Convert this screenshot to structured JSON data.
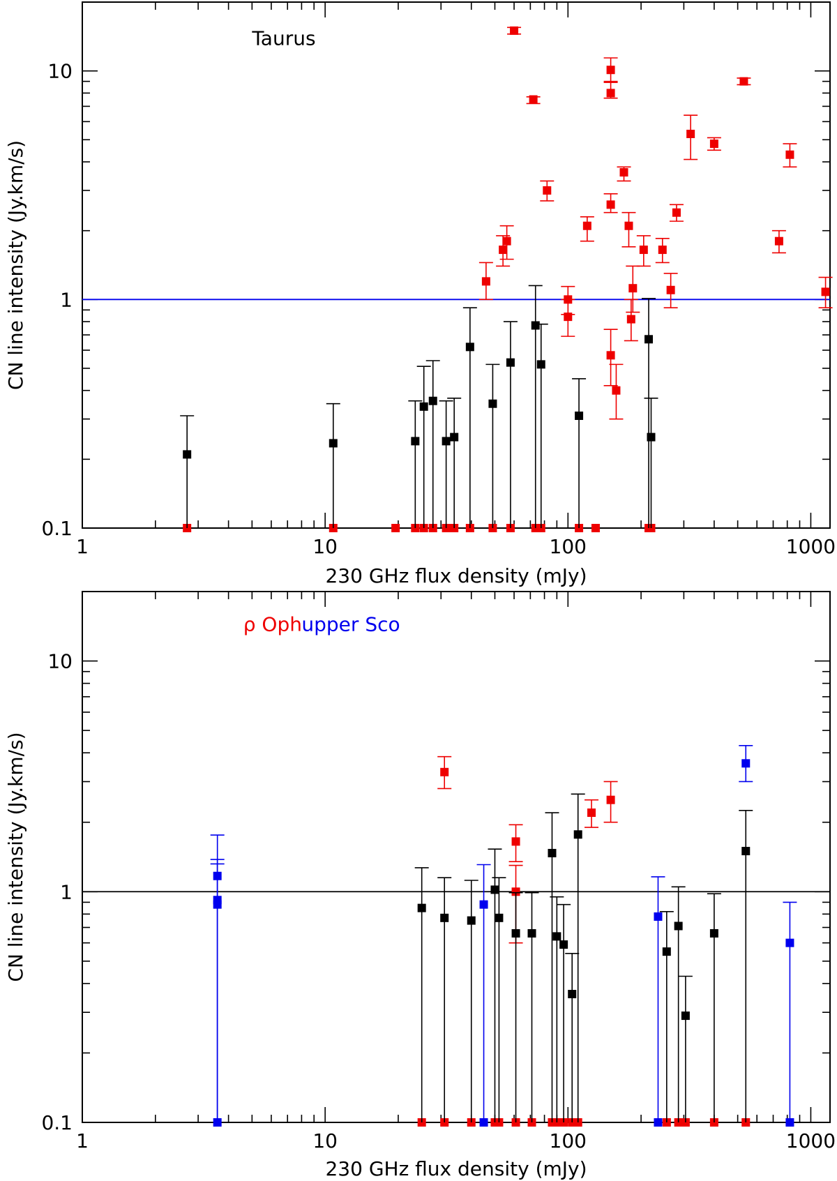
{
  "chart_data": [
    {
      "type": "scatter",
      "xscale": "log",
      "yscale": "log",
      "xlim": [
        1,
        1200
      ],
      "ylim": [
        0.1,
        20
      ],
      "xlabel": "230 GHz flux density (mJy)",
      "ylabel": "CN line intensity (Jy.km/s)",
      "xticks": [
        {
          "value": 1,
          "label": "1"
        },
        {
          "value": 10,
          "label": "10"
        },
        {
          "value": 100,
          "label": "100"
        },
        {
          "value": 1000,
          "label": "1000"
        }
      ],
      "yticks": [
        {
          "value": 0.1,
          "label": "0.1"
        },
        {
          "value": 1,
          "label": "1"
        },
        {
          "value": 10,
          "label": "10"
        }
      ],
      "reference_line": {
        "y": 1,
        "color": "#0000ee"
      },
      "annotations": [
        {
          "text": "Taurus",
          "color": "#000000",
          "x": 5,
          "y": 13
        }
      ],
      "series": [
        {
          "color": "#ee0000",
          "points": [
            {
              "x": 60,
              "y": 15.0,
              "lo": 14.5,
              "hi": 15.5
            },
            {
              "x": 72,
              "y": 7.5,
              "lo": 7.2,
              "hi": 7.7
            },
            {
              "x": 150,
              "y": 10.1,
              "lo": 8.9,
              "hi": 11.4
            },
            {
              "x": 150,
              "y": 8.0,
              "lo": 7.6,
              "hi": 9.0
            },
            {
              "x": 530,
              "y": 9.0,
              "lo": 8.7,
              "hi": 9.3
            },
            {
              "x": 320,
              "y": 5.3,
              "lo": 4.1,
              "hi": 6.4
            },
            {
              "x": 400,
              "y": 4.8,
              "lo": 4.5,
              "hi": 5.1
            },
            {
              "x": 820,
              "y": 4.3,
              "lo": 3.8,
              "hi": 4.8
            },
            {
              "x": 82,
              "y": 3.0,
              "lo": 2.7,
              "hi": 3.3
            },
            {
              "x": 170,
              "y": 3.6,
              "lo": 3.3,
              "hi": 3.8
            },
            {
              "x": 150,
              "y": 2.6,
              "lo": 2.4,
              "hi": 2.9
            },
            {
              "x": 280,
              "y": 2.4,
              "lo": 2.2,
              "hi": 2.6
            },
            {
              "x": 120,
              "y": 2.1,
              "lo": 1.8,
              "hi": 2.3
            },
            {
              "x": 178,
              "y": 2.1,
              "lo": 1.7,
              "hi": 2.4
            },
            {
              "x": 56,
              "y": 1.8,
              "lo": 1.5,
              "hi": 2.1
            },
            {
              "x": 54,
              "y": 1.65,
              "lo": 1.4,
              "hi": 1.9
            },
            {
              "x": 205,
              "y": 1.65,
              "lo": 1.4,
              "hi": 1.9
            },
            {
              "x": 245,
              "y": 1.65,
              "lo": 1.45,
              "hi": 1.85
            },
            {
              "x": 740,
              "y": 1.8,
              "lo": 1.6,
              "hi": 2.0
            },
            {
              "x": 46,
              "y": 1.2,
              "lo": 1.0,
              "hi": 1.45
            },
            {
              "x": 100,
              "y": 1.0,
              "lo": 0.86,
              "hi": 1.14
            },
            {
              "x": 100,
              "y": 0.84,
              "lo": 0.69,
              "hi": 1.0
            },
            {
              "x": 185,
              "y": 1.12,
              "lo": 0.88,
              "hi": 1.4
            },
            {
              "x": 265,
              "y": 1.1,
              "lo": 0.92,
              "hi": 1.3
            },
            {
              "x": 1150,
              "y": 1.08,
              "lo": 0.92,
              "hi": 1.25
            },
            {
              "x": 182,
              "y": 0.82,
              "lo": 0.66,
              "hi": 1.0
            },
            {
              "x": 150,
              "y": 0.57,
              "lo": 0.42,
              "hi": 0.74
            },
            {
              "x": 158,
              "y": 0.4,
              "lo": 0.3,
              "hi": 0.52
            },
            {
              "x": 2.7,
              "y": 0.1
            },
            {
              "x": 10.8,
              "y": 0.1
            },
            {
              "x": 19.5,
              "y": 0.1
            },
            {
              "x": 23.5,
              "y": 0.1
            },
            {
              "x": 25.5,
              "y": 0.1
            },
            {
              "x": 27.8,
              "y": 0.1
            },
            {
              "x": 31.5,
              "y": 0.1
            },
            {
              "x": 34,
              "y": 0.1
            },
            {
              "x": 39.5,
              "y": 0.1
            },
            {
              "x": 49,
              "y": 0.1
            },
            {
              "x": 58,
              "y": 0.1
            },
            {
              "x": 73.5,
              "y": 0.1
            },
            {
              "x": 77.5,
              "y": 0.1
            },
            {
              "x": 111,
              "y": 0.1
            },
            {
              "x": 130,
              "y": 0.1
            },
            {
              "x": 215,
              "y": 0.1
            },
            {
              "x": 220,
              "y": 0.1
            }
          ]
        },
        {
          "color": "#000000",
          "points": [
            {
              "x": 2.7,
              "y": 0.21,
              "lo": 0.1,
              "hi": 0.31
            },
            {
              "x": 10.8,
              "y": 0.235,
              "lo": 0.1,
              "hi": 0.35
            },
            {
              "x": 23.5,
              "y": 0.24,
              "lo": 0.1,
              "hi": 0.36
            },
            {
              "x": 25.5,
              "y": 0.34,
              "lo": 0.1,
              "hi": 0.51
            },
            {
              "x": 27.8,
              "y": 0.36,
              "lo": 0.1,
              "hi": 0.54
            },
            {
              "x": 31.5,
              "y": 0.24,
              "lo": 0.1,
              "hi": 0.36
            },
            {
              "x": 34,
              "y": 0.25,
              "lo": 0.1,
              "hi": 0.37
            },
            {
              "x": 39.5,
              "y": 0.62,
              "lo": 0.1,
              "hi": 0.92
            },
            {
              "x": 49,
              "y": 0.35,
              "lo": 0.1,
              "hi": 0.52
            },
            {
              "x": 58,
              "y": 0.53,
              "lo": 0.1,
              "hi": 0.8
            },
            {
              "x": 73.5,
              "y": 0.77,
              "lo": 0.1,
              "hi": 1.15
            },
            {
              "x": 77.5,
              "y": 0.52,
              "lo": 0.1,
              "hi": 0.78
            },
            {
              "x": 111,
              "y": 0.31,
              "lo": 0.1,
              "hi": 0.45
            },
            {
              "x": 215,
              "y": 0.67,
              "lo": 0.1,
              "hi": 1.01
            },
            {
              "x": 220,
              "y": 0.25,
              "lo": 0.1,
              "hi": 0.37
            }
          ]
        }
      ]
    },
    {
      "type": "scatter",
      "xscale": "log",
      "yscale": "log",
      "xlim": [
        1,
        1200
      ],
      "ylim": [
        0.1,
        20
      ],
      "xlabel": "230 GHz flux density (mJy)",
      "ylabel": "CN line intensity (Jy.km/s)",
      "xticks": [
        {
          "value": 1,
          "label": "1"
        },
        {
          "value": 10,
          "label": "10"
        },
        {
          "value": 100,
          "label": "100"
        },
        {
          "value": 1000,
          "label": "1000"
        }
      ],
      "yticks": [
        {
          "value": 0.1,
          "label": "0.1"
        },
        {
          "value": 1,
          "label": "1"
        },
        {
          "value": 10,
          "label": "10"
        }
      ],
      "reference_line": {
        "y": 1,
        "color": "#000000"
      },
      "annotations": [
        {
          "text": "ρ Oph",
          "color": "#ee0000",
          "x": 4.6,
          "y": 13.5
        },
        {
          "text": "upper Sco",
          "color": "#0000ee",
          "x": 8,
          "y": 13.5
        }
      ],
      "series": [
        {
          "color": "#ee0000",
          "points": [
            {
              "x": 31,
              "y": 3.3,
              "lo": 2.8,
              "hi": 3.85
            },
            {
              "x": 61,
              "y": 1.65,
              "lo": 1.35,
              "hi": 1.95
            },
            {
              "x": 61,
              "y": 1.0,
              "lo": 0.6,
              "hi": 1.3
            },
            {
              "x": 125,
              "y": 2.2,
              "lo": 1.9,
              "hi": 2.5
            },
            {
              "x": 150,
              "y": 2.5,
              "lo": 2.0,
              "hi": 3.0
            },
            {
              "x": 25,
              "y": 0.1
            },
            {
              "x": 31,
              "y": 0.1
            },
            {
              "x": 40,
              "y": 0.1
            },
            {
              "x": 50,
              "y": 0.1
            },
            {
              "x": 52,
              "y": 0.1
            },
            {
              "x": 61,
              "y": 0.1
            },
            {
              "x": 71,
              "y": 0.1
            },
            {
              "x": 86,
              "y": 0.1
            },
            {
              "x": 90,
              "y": 0.1
            },
            {
              "x": 96,
              "y": 0.1
            },
            {
              "x": 104,
              "y": 0.1
            },
            {
              "x": 110,
              "y": 0.1
            },
            {
              "x": 255,
              "y": 0.1
            },
            {
              "x": 285,
              "y": 0.1
            },
            {
              "x": 305,
              "y": 0.1
            },
            {
              "x": 400,
              "y": 0.1
            },
            {
              "x": 540,
              "y": 0.1
            }
          ]
        },
        {
          "color": "#000000",
          "points": [
            {
              "x": 25,
              "y": 0.85,
              "lo": 0.1,
              "hi": 1.27
            },
            {
              "x": 31,
              "y": 0.77,
              "lo": 0.1,
              "hi": 1.15
            },
            {
              "x": 40,
              "y": 0.75,
              "lo": 0.1,
              "hi": 1.12
            },
            {
              "x": 50,
              "y": 1.02,
              "lo": 0.1,
              "hi": 1.53
            },
            {
              "x": 52,
              "y": 0.77,
              "lo": 0.1,
              "hi": 1.15
            },
            {
              "x": 61,
              "y": 0.66,
              "lo": 0.1,
              "hi": 0.99
            },
            {
              "x": 71,
              "y": 0.66,
              "lo": 0.1,
              "hi": 0.99
            },
            {
              "x": 86,
              "y": 1.47,
              "lo": 0.1,
              "hi": 2.2
            },
            {
              "x": 90,
              "y": 0.64,
              "lo": 0.1,
              "hi": 0.95
            },
            {
              "x": 96,
              "y": 0.59,
              "lo": 0.1,
              "hi": 0.88
            },
            {
              "x": 104,
              "y": 0.36,
              "lo": 0.1,
              "hi": 0.54
            },
            {
              "x": 110,
              "y": 1.77,
              "lo": 0.1,
              "hi": 2.65
            },
            {
              "x": 255,
              "y": 0.55,
              "lo": 0.1,
              "hi": 0.82
            },
            {
              "x": 285,
              "y": 0.71,
              "lo": 0.1,
              "hi": 1.05
            },
            {
              "x": 305,
              "y": 0.29,
              "lo": 0.1,
              "hi": 0.43
            },
            {
              "x": 400,
              "y": 0.66,
              "lo": 0.1,
              "hi": 0.98
            },
            {
              "x": 540,
              "y": 1.5,
              "lo": 0.1,
              "hi": 2.25
            }
          ]
        },
        {
          "color": "#0000ee",
          "points": [
            {
              "x": 3.6,
              "y": 1.17,
              "lo": 0.1,
              "hi": 1.76
            },
            {
              "x": 3.6,
              "y": 0.92,
              "lo": 0.1,
              "hi": 1.38
            },
            {
              "x": 3.6,
              "y": 0.88,
              "lo": 0.1,
              "hi": 1.32
            },
            {
              "x": 45,
              "y": 0.88,
              "lo": 0.1,
              "hi": 1.31
            },
            {
              "x": 235,
              "y": 0.78,
              "lo": 0.1,
              "hi": 1.16
            },
            {
              "x": 540,
              "y": 3.6,
              "lo": 3.0,
              "hi": 4.3
            },
            {
              "x": 820,
              "y": 0.6,
              "lo": 0.1,
              "hi": 0.9
            },
            {
              "x": 3.6,
              "y": 0.1
            },
            {
              "x": 45,
              "y": 0.1
            },
            {
              "x": 235,
              "y": 0.1
            },
            {
              "x": 820,
              "y": 0.1
            }
          ]
        }
      ]
    }
  ]
}
